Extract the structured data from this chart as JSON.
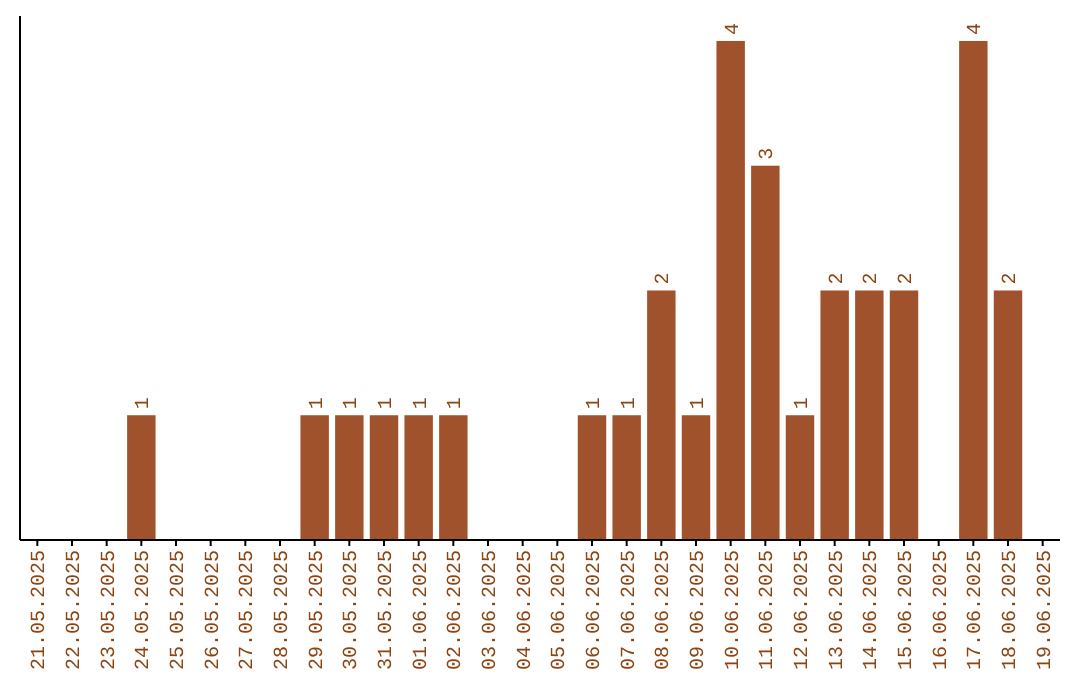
{
  "chart_data": {
    "type": "bar",
    "categories": [
      "21.05.2025",
      "22.05.2025",
      "23.05.2025",
      "24.05.2025",
      "25.05.2025",
      "26.05.2025",
      "27.05.2025",
      "28.05.2025",
      "29.05.2025",
      "30.05.2025",
      "31.05.2025",
      "01.06.2025",
      "02.06.2025",
      "03.06.2025",
      "04.06.2025",
      "05.06.2025",
      "06.06.2025",
      "07.06.2025",
      "08.06.2025",
      "09.06.2025",
      "10.06.2025",
      "11.06.2025",
      "12.06.2025",
      "13.06.2025",
      "14.06.2025",
      "15.06.2025",
      "16.06.2025",
      "17.06.2025",
      "18.06.2025",
      "19.06.2025"
    ],
    "values": [
      0,
      0,
      0,
      1,
      0,
      0,
      0,
      0,
      1,
      1,
      1,
      1,
      1,
      0,
      0,
      0,
      1,
      1,
      2,
      1,
      4,
      3,
      1,
      2,
      2,
      2,
      0,
      4,
      2,
      0
    ],
    "value_labels": [
      null,
      null,
      null,
      "1",
      null,
      null,
      null,
      null,
      "1",
      "1",
      "1",
      "1",
      "1",
      null,
      null,
      null,
      "1",
      "1",
      "2",
      "1",
      "4",
      "3",
      "1",
      "2",
      "2",
      "2",
      null,
      "4",
      "2",
      null
    ],
    "color": "#a0522d",
    "ylim": [
      0,
      4.2
    ],
    "grid": false
  }
}
